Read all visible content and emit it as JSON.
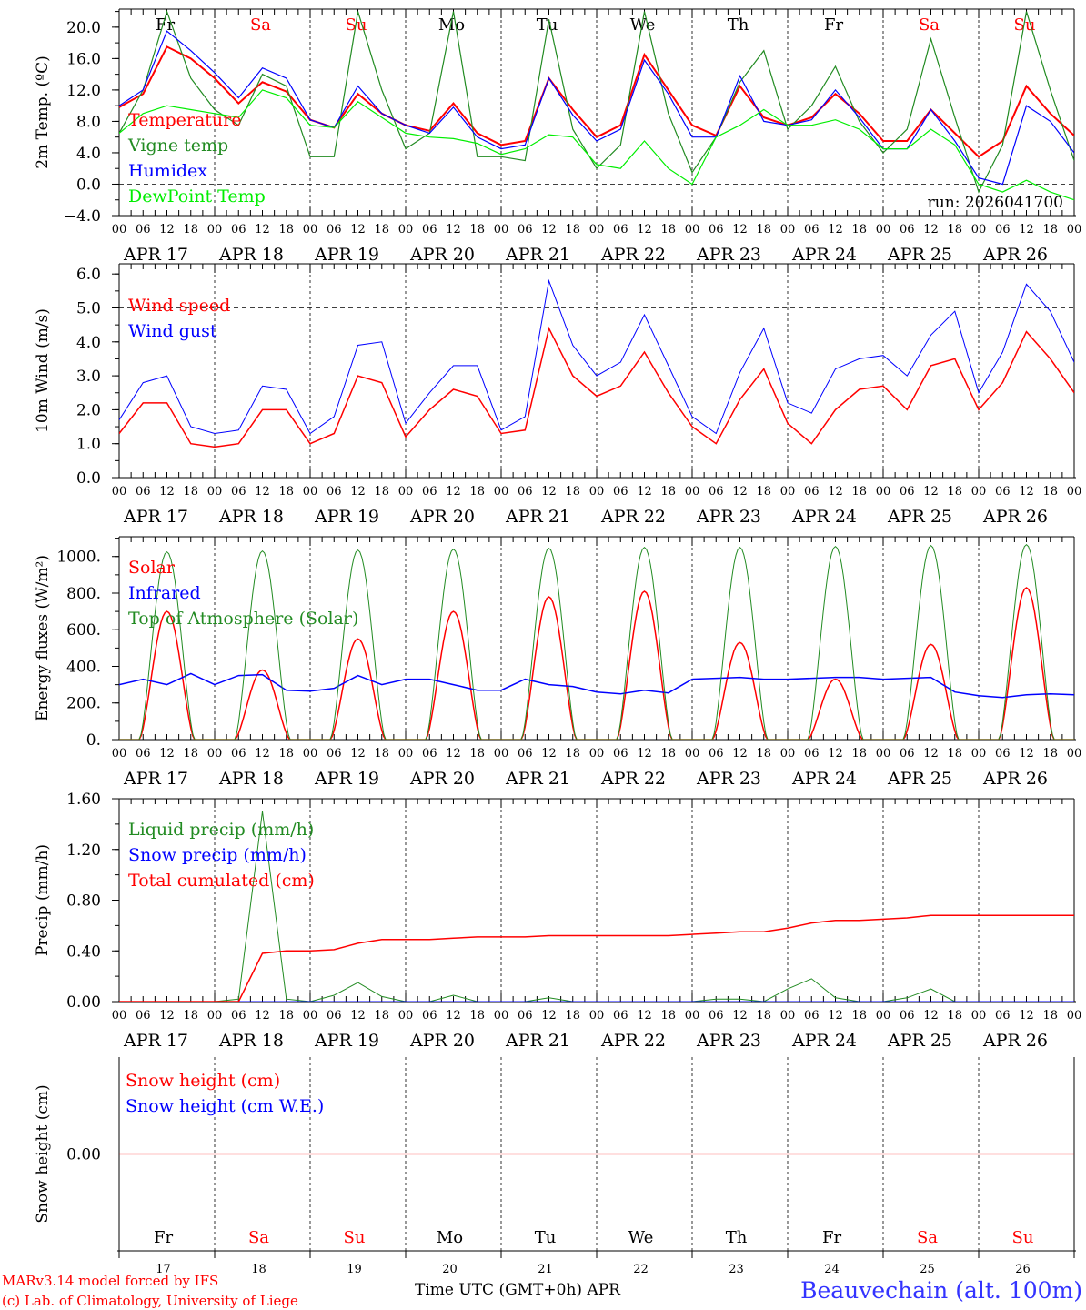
{
  "days": [
    "Fr",
    "Sa",
    "Su",
    "Mo",
    "Tu",
    "We",
    "Th",
    "Fr",
    "Sa",
    "Su"
  ],
  "weekend_color": "#ff0000",
  "dates": [
    "APR 17",
    "APR 18",
    "APR 19",
    "APR 20",
    "APR 21",
    "APR 22",
    "APR 23",
    "APR 24",
    "APR 25",
    "APR 26"
  ],
  "day_numbers": [
    "17",
    "18",
    "19",
    "20",
    "21",
    "22",
    "23",
    "24",
    "25",
    "26"
  ],
  "hour_labels": [
    "00",
    "06",
    "12",
    "18"
  ],
  "footer": {
    "model": "MARv3.14 model forced by IFS",
    "credit": "(c) Lab. of Climatology, University of Liege",
    "xlabel": "Time UTC (GMT+0h) APR",
    "station": "Beauvechain (alt. 100m)"
  },
  "run_label": "run: 2026041700",
  "chart_data": [
    {
      "type": "line",
      "ylabel": "2m Temp. (ºC)",
      "ylim": [
        -4,
        22.3
      ],
      "yticks": [
        "20.0",
        "16.0",
        "12.0",
        "8.0",
        "4.0",
        "0.0",
        "−4.0"
      ],
      "ytick_values": [
        20,
        16,
        12,
        8,
        4,
        0,
        -4
      ],
      "zero_line": 0,
      "x_step_hours": 6,
      "series": [
        {
          "name": "Temperature",
          "color": "#ff0000",
          "width": 2,
          "values": [
            9.8,
            11.5,
            17.5,
            16,
            13.5,
            10.3,
            13,
            11.8,
            8.2,
            7.2,
            11.5,
            9,
            7.5,
            6.8,
            10.3,
            6.5,
            5,
            5.5,
            13.5,
            9.5,
            6,
            7.5,
            16.5,
            12,
            7.5,
            6.2,
            12.5,
            8.5,
            7.5,
            8.5,
            11.5,
            9,
            5.5,
            5.5,
            9.5,
            6.5,
            3.5,
            5.5,
            12.5,
            9,
            6.2
          ]
        },
        {
          "name": "Vigne temp",
          "color": "#228b22",
          "width": 1.2,
          "values": [
            6.5,
            12,
            22,
            13.5,
            9.5,
            7.5,
            14,
            12.5,
            3.5,
            3.5,
            22,
            12,
            4.5,
            6.5,
            22,
            3.5,
            3.5,
            3,
            21,
            7,
            2,
            5,
            22,
            9,
            1.5,
            6,
            13,
            17,
            7,
            10,
            15,
            8,
            4,
            7,
            18.5,
            8.5,
            -1,
            5,
            22,
            12,
            3
          ]
        },
        {
          "name": "Humidex",
          "color": "#0000ff",
          "width": 1.2,
          "values": [
            10,
            12,
            19.5,
            17,
            14.2,
            11,
            14.8,
            13.5,
            8.2,
            7.2,
            12.5,
            9,
            7.5,
            6.5,
            9.8,
            6,
            4.5,
            5,
            13.5,
            8.8,
            5.5,
            7,
            15.8,
            11.5,
            6,
            6,
            13.8,
            8,
            7.5,
            8.2,
            12,
            8.5,
            4.5,
            4.5,
            9.5,
            5.5,
            0.8,
            0,
            10,
            8,
            4
          ]
        },
        {
          "name": "DewPoint Temp",
          "color": "#00ee00",
          "width": 1.2,
          "values": [
            6.5,
            9,
            10,
            9.5,
            9,
            8.5,
            12,
            11,
            7.5,
            7.2,
            10.5,
            8.5,
            6.5,
            6,
            5.8,
            5.2,
            3.8,
            4.5,
            6.3,
            6,
            2.5,
            2,
            5.5,
            2,
            0,
            6,
            7.5,
            9.5,
            7.5,
            7.5,
            8.2,
            7,
            4.5,
            4.5,
            7,
            5,
            0,
            -1,
            0.5,
            -1,
            -2
          ]
        }
      ]
    },
    {
      "type": "line",
      "ylabel": "10m Wind (m/s)",
      "ylim": [
        0,
        6.3
      ],
      "yticks": [
        "6.0",
        "5.0",
        "4.0",
        "3.0",
        "2.0",
        "1.0",
        "0.0"
      ],
      "ytick_values": [
        6,
        5,
        4,
        3,
        2,
        1,
        0
      ],
      "zero_line": 5,
      "x_step_hours": 6,
      "series": [
        {
          "name": "Wind speed",
          "color": "#ff0000",
          "width": 1.5,
          "values": [
            1.3,
            2.2,
            2.2,
            1.0,
            0.9,
            1.0,
            2.0,
            2.0,
            1.0,
            1.3,
            3.0,
            2.8,
            1.2,
            2.0,
            2.6,
            2.4,
            1.3,
            1.4,
            4.4,
            3.0,
            2.4,
            2.7,
            3.7,
            2.5,
            1.5,
            1.0,
            2.3,
            3.2,
            1.6,
            1.0,
            2.0,
            2.6,
            2.7,
            2.0,
            3.3,
            3.5,
            2.0,
            2.8,
            4.3,
            3.5,
            2.5
          ]
        },
        {
          "name": "Wind gust",
          "color": "#0000ff",
          "width": 1,
          "values": [
            1.7,
            2.8,
            3.0,
            1.5,
            1.3,
            1.4,
            2.7,
            2.6,
            1.3,
            1.8,
            3.9,
            4.0,
            1.6,
            2.5,
            3.3,
            3.3,
            1.4,
            1.8,
            5.8,
            3.9,
            3.0,
            3.4,
            4.8,
            3.3,
            1.8,
            1.3,
            3.1,
            4.4,
            2.2,
            1.9,
            3.2,
            3.5,
            3.6,
            3.0,
            4.2,
            4.9,
            2.5,
            3.7,
            5.7,
            4.9,
            3.4
          ]
        }
      ]
    },
    {
      "type": "line",
      "ylabel": "Energy fluxes (W/m²)",
      "ylim": [
        0,
        1108
      ],
      "yticks": [
        "1000.",
        "800.",
        "600.",
        "400.",
        "200.",
        "0."
      ],
      "ytick_values": [
        1000,
        800,
        600,
        400,
        200,
        0
      ],
      "sun_hours": [
        5,
        19
      ],
      "series": [
        {
          "name": "Solar",
          "color": "#ff0000",
          "width": 1.5,
          "daily_peak": [
            700,
            380,
            550,
            700,
            780,
            810,
            530,
            330,
            520,
            830
          ]
        },
        {
          "name": "Infrared",
          "color": "#0000ff",
          "width": 1.5,
          "x_step_hours": 6,
          "values": [
            300,
            330,
            300,
            360,
            300,
            350,
            355,
            270,
            265,
            280,
            350,
            300,
            330,
            330,
            300,
            270,
            270,
            330,
            300,
            290,
            260,
            250,
            270,
            255,
            330,
            335,
            340,
            330,
            330,
            335,
            340,
            340,
            330,
            335,
            340,
            260,
            240,
            230,
            245,
            250,
            245
          ]
        },
        {
          "name": "Top of Atmosphere (Solar)",
          "color": "#228b22",
          "width": 1,
          "daily_peak": [
            1025,
            1030,
            1035,
            1040,
            1045,
            1050,
            1050,
            1055,
            1060,
            1065
          ]
        }
      ]
    },
    {
      "type": "line",
      "ylabel": "Precip (mm/h)",
      "ylim": [
        0,
        1.6
      ],
      "yticks": [
        "1.60",
        "1.20",
        "0.80",
        "0.40",
        "0.00"
      ],
      "ytick_values": [
        1.6,
        1.2,
        0.8,
        0.4,
        0
      ],
      "x_step_hours": 6,
      "series": [
        {
          "name": "Liquid precip (mm/h)",
          "color": "#228b22",
          "width": 1,
          "values": [
            0,
            0,
            0,
            0,
            0,
            0.02,
            1.5,
            0.02,
            0,
            0.05,
            0.15,
            0.04,
            0,
            0,
            0.05,
            0,
            0,
            0,
            0.03,
            0,
            0,
            0,
            0,
            0,
            0,
            0.02,
            0.02,
            0,
            0.1,
            0.18,
            0.03,
            0,
            0,
            0.03,
            0.1,
            0,
            0,
            0,
            0,
            0,
            0
          ]
        },
        {
          "name": "Snow precip (mm/h)",
          "color": "#0000ff",
          "width": 1,
          "values": [
            0,
            0,
            0,
            0,
            0,
            0,
            0,
            0,
            0,
            0,
            0,
            0,
            0,
            0,
            0,
            0,
            0,
            0,
            0,
            0,
            0,
            0,
            0,
            0,
            0,
            0,
            0,
            0,
            0,
            0,
            0,
            0,
            0,
            0,
            0,
            0,
            0,
            0,
            0,
            0,
            0
          ]
        },
        {
          "name": "Total cumulated (cm)",
          "color": "#ff0000",
          "width": 1.5,
          "values": [
            0,
            0,
            0,
            0,
            0,
            0,
            0.38,
            0.4,
            0.4,
            0.41,
            0.46,
            0.49,
            0.49,
            0.49,
            0.5,
            0.51,
            0.51,
            0.51,
            0.52,
            0.52,
            0.52,
            0.52,
            0.52,
            0.52,
            0.53,
            0.54,
            0.55,
            0.55,
            0.58,
            0.62,
            0.64,
            0.64,
            0.65,
            0.66,
            0.68,
            0.68,
            0.68,
            0.68,
            0.68,
            0.68,
            0.68
          ]
        }
      ]
    },
    {
      "type": "line",
      "ylabel": "Snow height (cm)",
      "ylim": [
        -1,
        1
      ],
      "yticks": [
        "0.00"
      ],
      "ytick_values": [
        0
      ],
      "x_step_hours": 6,
      "series": [
        {
          "name": "Snow height (cm)",
          "color": "#ff0000",
          "width": 1.2,
          "values": [
            0,
            0,
            0,
            0,
            0,
            0,
            0,
            0,
            0,
            0,
            0,
            0,
            0,
            0,
            0,
            0,
            0,
            0,
            0,
            0,
            0,
            0,
            0,
            0,
            0,
            0,
            0,
            0,
            0,
            0,
            0,
            0,
            0,
            0,
            0,
            0,
            0,
            0,
            0,
            0,
            0
          ]
        },
        {
          "name": "Snow height (cm W.E.)",
          "color": "#0000ff",
          "width": 1,
          "values": [
            0,
            0,
            0,
            0,
            0,
            0,
            0,
            0,
            0,
            0,
            0,
            0,
            0,
            0,
            0,
            0,
            0,
            0,
            0,
            0,
            0,
            0,
            0,
            0,
            0,
            0,
            0,
            0,
            0,
            0,
            0,
            0,
            0,
            0,
            0,
            0,
            0,
            0,
            0,
            0,
            0
          ]
        }
      ]
    }
  ]
}
